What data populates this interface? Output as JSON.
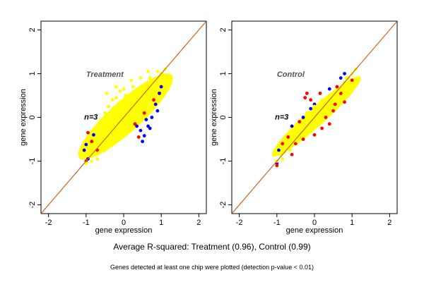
{
  "chart_data": [
    {
      "type": "scatter",
      "panel": "Treatment",
      "title": "Treatment",
      "annotation": "n=3",
      "xlabel": "gene expression",
      "ylabel": "gene expression",
      "xlim": [
        -2.2,
        2.2
      ],
      "ylim": [
        -2.2,
        2.2
      ],
      "xticks": [
        -2,
        -1,
        0,
        1,
        2
      ],
      "yticks": [
        -2,
        -1,
        0,
        1,
        2
      ],
      "identity_line": {
        "from": [
          -2.2,
          -2.2
        ],
        "to": [
          2.2,
          2.2
        ],
        "color": "#c8641e"
      },
      "series": [
        {
          "color": "#0000ff",
          "values": [
            [
              -1.0,
              -0.62
            ],
            [
              -1.05,
              -0.75
            ],
            [
              -0.95,
              -0.95
            ],
            [
              -0.8,
              -0.4
            ],
            [
              0.45,
              -0.3
            ],
            [
              0.55,
              -0.42
            ],
            [
              0.7,
              -0.25
            ],
            [
              0.6,
              -0.05
            ],
            [
              0.75,
              0.0
            ],
            [
              0.85,
              0.3
            ],
            [
              0.9,
              0.15
            ],
            [
              0.5,
              -0.55
            ],
            [
              0.35,
              -0.2
            ],
            [
              0.95,
              0.55
            ],
            [
              1.0,
              0.7
            ],
            [
              0.65,
              -0.2
            ]
          ]
        },
        {
          "color": "#ff0000",
          "values": [
            [
              -0.95,
              -0.35
            ],
            [
              -1.0,
              -1.0
            ],
            [
              -0.85,
              -0.55
            ],
            [
              0.4,
              -0.45
            ],
            [
              0.55,
              0.1
            ],
            [
              -0.7,
              -0.75
            ],
            [
              0.8,
              0.4
            ],
            [
              0.3,
              -0.15
            ]
          ]
        },
        {
          "color": "#ffff00",
          "values": [
            [
              -1.0,
              -1.05
            ],
            [
              -0.8,
              -0.85
            ],
            [
              -0.6,
              -0.65
            ],
            [
              -0.4,
              -0.45
            ],
            [
              -0.2,
              -0.25
            ],
            [
              0.0,
              0.0
            ],
            [
              0.2,
              0.2
            ],
            [
              0.4,
              0.4
            ],
            [
              0.6,
              0.6
            ],
            [
              0.8,
              0.8
            ],
            [
              1.0,
              1.0
            ],
            [
              1.1,
              1.1
            ],
            [
              -0.9,
              -0.7
            ],
            [
              -0.7,
              -0.5
            ],
            [
              -0.5,
              -0.3
            ],
            [
              -0.3,
              -0.1
            ],
            [
              -0.1,
              0.1
            ],
            [
              0.1,
              0.3
            ],
            [
              0.3,
              0.5
            ],
            [
              0.5,
              0.7
            ],
            [
              0.7,
              0.9
            ],
            [
              0.9,
              1.05
            ],
            [
              -0.95,
              -0.5
            ],
            [
              -0.75,
              -0.3
            ],
            [
              -0.55,
              -0.1
            ],
            [
              -0.35,
              0.1
            ],
            [
              -0.15,
              0.3
            ],
            [
              0.05,
              0.5
            ],
            [
              0.25,
              0.7
            ],
            [
              0.45,
              0.9
            ],
            [
              0.65,
              1.05
            ],
            [
              -0.6,
              -0.05
            ],
            [
              -0.4,
              0.25
            ],
            [
              -0.2,
              0.45
            ],
            [
              0.0,
              0.65
            ],
            [
              0.2,
              0.85
            ],
            [
              -0.3,
              0.4
            ],
            [
              -0.1,
              0.6
            ],
            [
              -0.5,
              0.1
            ],
            [
              -0.45,
              0.55
            ],
            [
              -0.2,
              0.7
            ],
            [
              -0.7,
              -0.95
            ],
            [
              -0.5,
              -0.75
            ],
            [
              -0.3,
              -0.55
            ],
            [
              -0.1,
              -0.35
            ],
            [
              0.1,
              -0.15
            ],
            [
              0.3,
              0.05
            ],
            [
              0.5,
              0.25
            ],
            [
              0.7,
              0.45
            ],
            [
              0.9,
              0.7
            ],
            [
              -0.85,
              -1.0
            ],
            [
              -0.65,
              -0.8
            ],
            [
              0.2,
              -0.05
            ],
            [
              0.4,
              0.15
            ],
            [
              0.6,
              0.35
            ]
          ]
        }
      ]
    },
    {
      "type": "scatter",
      "panel": "Control",
      "title": "Control",
      "annotation": "n=3",
      "xlabel": "gene expression",
      "ylabel": "gene expression",
      "xlim": [
        -2.2,
        2.2
      ],
      "ylim": [
        -2.2,
        2.2
      ],
      "xticks": [
        -2,
        -1,
        0,
        1,
        2
      ],
      "yticks": [
        -2,
        -1,
        0,
        1,
        2
      ],
      "identity_line": {
        "from": [
          -2.2,
          -2.2
        ],
        "to": [
          2.2,
          2.2
        ],
        "color": "#c8641e"
      },
      "series": [
        {
          "color": "#0000ff",
          "values": [
            [
              -1.0,
              -1.05
            ],
            [
              -0.95,
              -0.75
            ],
            [
              -0.6,
              -0.2
            ],
            [
              -0.3,
              0.0
            ],
            [
              0.0,
              0.3
            ],
            [
              0.4,
              0.65
            ],
            [
              0.7,
              0.9
            ],
            [
              0.8,
              1.0
            ],
            [
              -0.1,
              0.2
            ]
          ]
        },
        {
          "color": "#ff0000",
          "values": [
            [
              -1.0,
              -1.1
            ],
            [
              -0.85,
              -0.6
            ],
            [
              -0.7,
              -0.45
            ],
            [
              -0.5,
              -0.6
            ],
            [
              -0.3,
              -0.5
            ],
            [
              -0.1,
              0.4
            ],
            [
              -0.2,
              0.55
            ],
            [
              0.0,
              -0.4
            ],
            [
              0.2,
              -0.25
            ],
            [
              0.3,
              0.0
            ],
            [
              0.5,
              0.15
            ],
            [
              0.6,
              0.7
            ],
            [
              0.7,
              0.55
            ],
            [
              0.8,
              0.35
            ],
            [
              0.9,
              0.9
            ],
            [
              1.0,
              0.85
            ],
            [
              -0.6,
              -0.85
            ],
            [
              0.4,
              -0.15
            ],
            [
              -0.4,
              -0.1
            ],
            [
              -0.25,
              0.45
            ],
            [
              0.15,
              0.55
            ],
            [
              0.55,
              0.3
            ]
          ]
        },
        {
          "color": "#ffff00",
          "values": [
            [
              -1.0,
              -1.0
            ],
            [
              -0.9,
              -0.85
            ],
            [
              -0.8,
              -0.8
            ],
            [
              -0.7,
              -0.65
            ],
            [
              -0.6,
              -0.6
            ],
            [
              -0.5,
              -0.45
            ],
            [
              -0.4,
              -0.4
            ],
            [
              -0.3,
              -0.25
            ],
            [
              -0.2,
              -0.2
            ],
            [
              -0.1,
              -0.05
            ],
            [
              0.0,
              0.0
            ],
            [
              0.1,
              0.1
            ],
            [
              0.2,
              0.2
            ],
            [
              0.3,
              0.3
            ],
            [
              0.4,
              0.4
            ],
            [
              0.5,
              0.5
            ],
            [
              0.6,
              0.6
            ],
            [
              0.7,
              0.7
            ],
            [
              0.8,
              0.8
            ],
            [
              0.9,
              0.9
            ],
            [
              1.0,
              1.0
            ],
            [
              1.1,
              1.1
            ],
            [
              -0.85,
              -0.95
            ],
            [
              -0.75,
              -0.7
            ],
            [
              -0.55,
              -0.4
            ],
            [
              -0.35,
              -0.3
            ],
            [
              -0.15,
              -0.05
            ],
            [
              0.05,
              0.15
            ],
            [
              0.25,
              0.2
            ],
            [
              0.45,
              0.5
            ],
            [
              0.65,
              0.6
            ],
            [
              0.85,
              0.9
            ],
            [
              -0.65,
              -0.75
            ],
            [
              -0.45,
              -0.55
            ],
            [
              -0.25,
              -0.35
            ],
            [
              -0.05,
              -0.15
            ],
            [
              0.15,
              0.05
            ],
            [
              0.35,
              0.25
            ],
            [
              0.55,
              0.45
            ],
            [
              0.75,
              0.65
            ],
            [
              -0.2,
              0.1
            ],
            [
              0.0,
              0.25
            ],
            [
              0.2,
              0.4
            ],
            [
              0.3,
              0.1
            ],
            [
              0.1,
              -0.1
            ]
          ]
        }
      ]
    }
  ],
  "captions": {
    "summary": "Average R-squared: Treatment (0.96), Control (0.99)",
    "note": "Genes detected at least one chip were plotted (detection p-value < 0.01)"
  }
}
